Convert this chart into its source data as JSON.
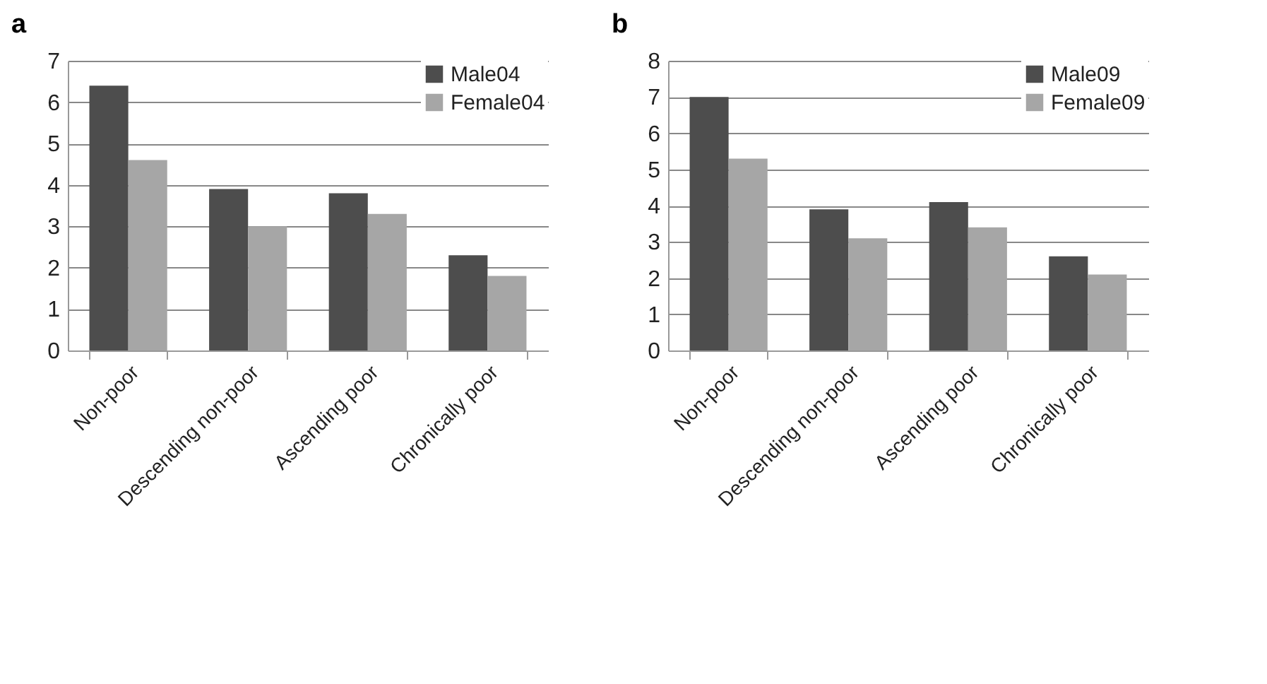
{
  "chart_data": [
    {
      "type": "bar",
      "title": "a",
      "categories": [
        "Non-poor",
        "Descending non-poor",
        "Ascending poor",
        "Chronically poor"
      ],
      "series": [
        {
          "name": "Male04",
          "color": "#4d4d4d",
          "values": [
            6.4,
            3.9,
            3.8,
            2.3
          ]
        },
        {
          "name": "Female04",
          "color": "#a6a6a6",
          "values": [
            4.6,
            3.0,
            3.3,
            1.8
          ]
        }
      ],
      "ylim": [
        0,
        7
      ],
      "yticks": [
        0,
        1,
        2,
        3,
        4,
        5,
        6,
        7
      ],
      "grid": "y",
      "legend": "top right"
    },
    {
      "type": "bar",
      "title": "b",
      "categories": [
        "Non-poor",
        "Descending non-poor",
        "Ascending poor",
        "Chronically poor"
      ],
      "series": [
        {
          "name": "Male09",
          "color": "#4d4d4d",
          "values": [
            7.0,
            3.9,
            4.1,
            2.6
          ]
        },
        {
          "name": "Female09",
          "color": "#a6a6a6",
          "values": [
            5.3,
            3.1,
            3.4,
            2.1
          ]
        }
      ],
      "ylim": [
        0,
        8
      ],
      "yticks": [
        0,
        1,
        2,
        3,
        4,
        5,
        6,
        7,
        8
      ],
      "grid": "y",
      "legend": "top right"
    }
  ]
}
